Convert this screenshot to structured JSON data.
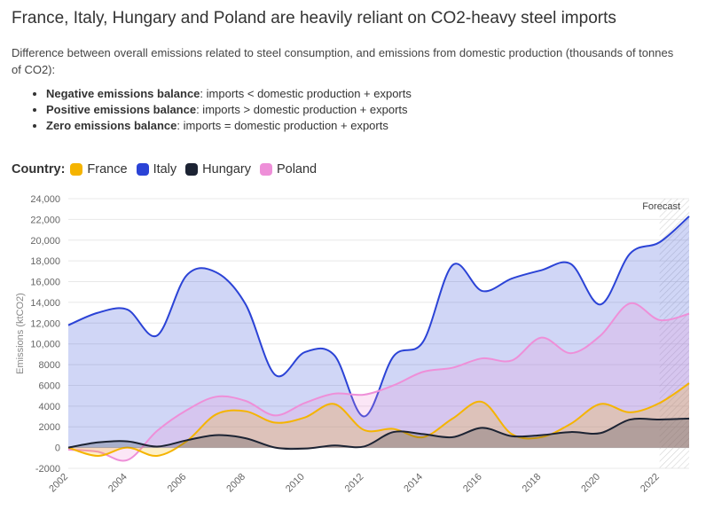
{
  "header": {
    "title": "France, Italy, Hungary and Poland are heavily reliant on CO2-heavy steel imports",
    "subtitle": "Difference between overall emissions related to steel consumption, and emissions from domestic production (thousands of tonnes of CO2):"
  },
  "bullets": [
    {
      "term": "Negative emissions balance",
      "desc": ": imports < domestic production + exports"
    },
    {
      "term": "Positive emissions balance",
      "desc": ": imports > domestic production + exports"
    },
    {
      "term": "Zero emissions balance",
      "desc": ": imports = domestic production + exports"
    }
  ],
  "legend": {
    "title": "Country:",
    "items": [
      {
        "label": "France",
        "color": "#f5b400"
      },
      {
        "label": "Italy",
        "color": "#2b43d6"
      },
      {
        "label": "Hungary",
        "color": "#1c2333"
      },
      {
        "label": "Poland",
        "color": "#ee8fd8"
      }
    ]
  },
  "chart_data": {
    "type": "area",
    "ylabel": "Emissions (ktCO2)",
    "xlabel": "",
    "ylim": [
      -2000,
      24000
    ],
    "y_ticks": [
      "-2000",
      "0",
      "2000",
      "4000",
      "6000",
      "8000",
      "10,000",
      "12,000",
      "14,000",
      "16,000",
      "18,000",
      "20,000",
      "22,000",
      "24,000"
    ],
    "x_ticks": [
      "2002",
      "2004",
      "2006",
      "2008",
      "2010",
      "2012",
      "2014",
      "2016",
      "2018",
      "2020",
      "2022"
    ],
    "forecast_label": "Forecast",
    "forecast_from": 2022,
    "grid": true,
    "x": [
      2002,
      2003,
      2004,
      2005,
      2006,
      2007,
      2008,
      2009,
      2010,
      2011,
      2012,
      2013,
      2014,
      2015,
      2016,
      2017,
      2018,
      2019,
      2020,
      2021,
      2022,
      2023
    ],
    "series": [
      {
        "name": "Italy",
        "color": "#2b43d6",
        "values": [
          11800,
          13000,
          13300,
          10800,
          16600,
          16900,
          13800,
          7000,
          9200,
          8900,
          3000,
          8800,
          10200,
          17600,
          15100,
          16300,
          17100,
          17700,
          13800,
          18700,
          19800,
          22300
        ]
      },
      {
        "name": "Poland",
        "color": "#ee8fd8",
        "values": [
          -200,
          -400,
          -1200,
          1600,
          3600,
          4900,
          4500,
          3100,
          4300,
          5200,
          5100,
          6000,
          7300,
          7700,
          8600,
          8400,
          10600,
          9100,
          10800,
          13900,
          12300,
          12900
        ]
      },
      {
        "name": "France",
        "color": "#f5b400",
        "values": [
          0,
          -800,
          0,
          -800,
          600,
          3200,
          3500,
          2400,
          2900,
          4200,
          1700,
          1800,
          1000,
          2800,
          4400,
          1300,
          1000,
          2300,
          4200,
          3400,
          4300,
          6200
        ]
      },
      {
        "name": "Hungary",
        "color": "#1c2333",
        "values": [
          0,
          500,
          600,
          100,
          700,
          1200,
          900,
          0,
          -100,
          200,
          100,
          1500,
          1300,
          1000,
          1900,
          1100,
          1200,
          1500,
          1400,
          2700,
          2700,
          2800
        ]
      }
    ]
  }
}
